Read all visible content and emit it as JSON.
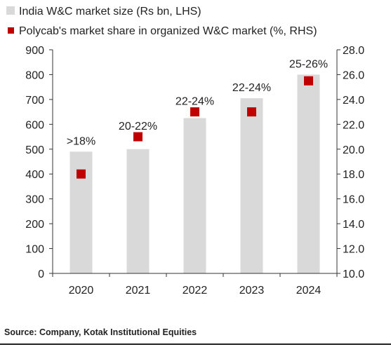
{
  "chart_data": {
    "type": "bar",
    "categories": [
      "2020",
      "2021",
      "2022",
      "2023",
      "2024"
    ],
    "series": [
      {
        "name": "India W&C market size (Rs bn, LHS)",
        "kind": "bar",
        "axis": "left",
        "color": "#d9d9d9",
        "values": [
          490,
          500,
          625,
          705,
          800
        ]
      },
      {
        "name": "Polycab's market share in organized W&C market (%, RHS)",
        "kind": "marker",
        "axis": "right",
        "color": "#c00000",
        "values": [
          18,
          21,
          23,
          23,
          25.5
        ],
        "labels": [
          ">18%",
          "20-22%",
          "22-24%",
          "22-24%",
          "25-26%"
        ]
      }
    ],
    "y_left": {
      "min": 0,
      "max": 900,
      "ticks": [
        "0",
        "100",
        "200",
        "300",
        "400",
        "500",
        "600",
        "700",
        "800",
        "900"
      ]
    },
    "y_right": {
      "min": 10,
      "max": 28,
      "ticks": [
        "10.0",
        "12.0",
        "14.0",
        "16.0",
        "18.0",
        "20.0",
        "22.0",
        "24.0",
        "26.0",
        "28.0"
      ]
    },
    "grid": false,
    "legend_position": "top-left"
  },
  "source": "Source: Company, Kotak Institutional Equities"
}
